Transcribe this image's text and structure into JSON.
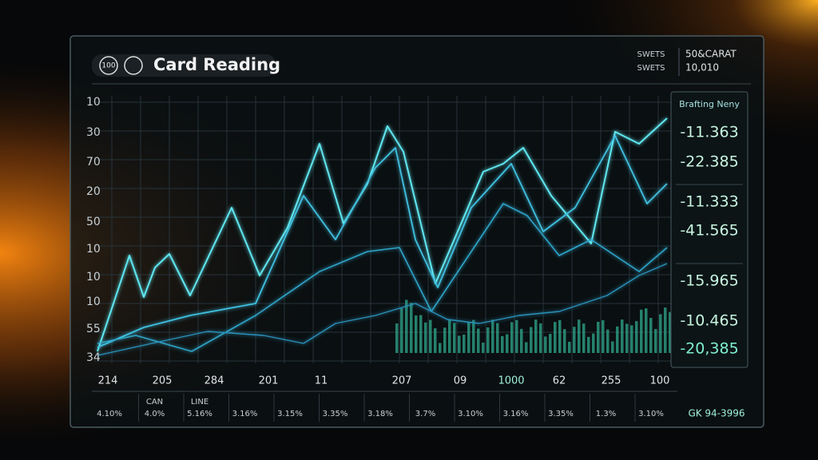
{
  "header": {
    "badge": "100",
    "title": "Card Reading",
    "legend": [
      {
        "label": "SWETS",
        "value": "50&CARAT"
      },
      {
        "label": "SWETS",
        "value": "10,010"
      }
    ]
  },
  "y_labels": [
    "10",
    "30",
    "70",
    "20",
    "50",
    "10",
    "10",
    "10",
    "55",
    "34"
  ],
  "x_labels": [
    "214",
    "205",
    "284",
    "201",
    "11",
    "207",
    "09",
    "1000",
    "62",
    "255",
    "100"
  ],
  "side_panel": {
    "title": "Brafting Neny",
    "values": [
      "-11.363",
      "-22.385",
      "-11.333",
      "-41.565",
      "-15.965",
      "-10.465",
      "-20,385"
    ]
  },
  "table": {
    "cells": [
      {
        "value": "4.10%"
      },
      {
        "label": "CAN",
        "value": "4.0%"
      },
      {
        "label": "LINE",
        "value": "5.16%"
      },
      {
        "value": "3.16%"
      },
      {
        "value": "3.15%"
      },
      {
        "value": "3.35%"
      },
      {
        "value": "3.18%"
      },
      {
        "value": "3.7%"
      },
      {
        "value": "3.10%"
      },
      {
        "value": "3.16%"
      },
      {
        "value": "3.35%"
      },
      {
        "value": "1.3%"
      },
      {
        "value": "3.10%"
      }
    ],
    "footer": "GK 94-3996"
  }
}
